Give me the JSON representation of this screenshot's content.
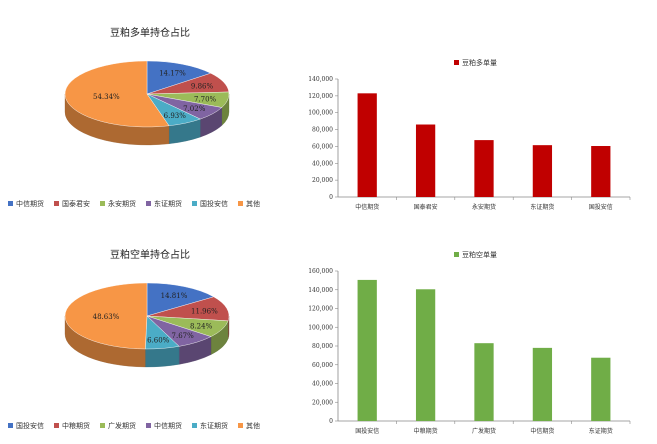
{
  "chart_data": [
    {
      "type": "pie",
      "title": "豆粕多单持仓占比",
      "categories": [
        "中信期货",
        "国泰君安",
        "永安期货",
        "东证期货",
        "国投安信",
        "其他"
      ],
      "values": [
        14.17,
        9.86,
        7.7,
        7.02,
        6.93,
        54.34
      ],
      "labels": [
        "14.17%",
        "9.86%",
        "7.70%",
        "7.02%",
        "6.93%",
        "54.34%"
      ],
      "colors": [
        "#4472c4",
        "#c0504d",
        "#9bbb59",
        "#8064a2",
        "#4bacc6",
        "#f79646"
      ],
      "legend_position": "bottom"
    },
    {
      "type": "bar",
      "legend": "豆粕多单量",
      "categories": [
        "中信期货",
        "国泰君安",
        "永安期货",
        "东证期货",
        "国投安信"
      ],
      "values": [
        123000,
        86000,
        67500,
        61500,
        60500
      ],
      "ylim": [
        0,
        140000
      ],
      "yticks": [
        "0",
        "20,000",
        "40,000",
        "60,000",
        "80,000",
        "100,000",
        "120,000",
        "140,000"
      ],
      "color": "#c00000",
      "grid": false,
      "legend_position": "top"
    },
    {
      "type": "pie",
      "title": "豆粕空单持仓占比",
      "categories": [
        "国投安信",
        "中粮期货",
        "广发期货",
        "中信期货",
        "东证期货",
        "其他"
      ],
      "values": [
        14.81,
        11.96,
        8.24,
        7.67,
        6.6,
        48.63
      ],
      "labels": [
        "14.81%",
        "11.96%",
        "8.24%",
        "7.67%",
        "6.60%",
        "48.63%"
      ],
      "colors": [
        "#4472c4",
        "#c0504d",
        "#9bbb59",
        "#8064a2",
        "#4bacc6",
        "#f79646"
      ],
      "legend_position": "bottom"
    },
    {
      "type": "bar",
      "legend": "豆粕空单量",
      "categories": [
        "国投安信",
        "中粮期货",
        "广发期货",
        "中信期货",
        "东证期货"
      ],
      "values": [
        150500,
        140500,
        83000,
        78000,
        67500
      ],
      "ylim": [
        0,
        160000
      ],
      "yticks": [
        "0",
        "20,000",
        "40,000",
        "60,000",
        "80,000",
        "100,000",
        "120,000",
        "140,000",
        "160,000"
      ],
      "color": "#70ad47",
      "grid": false,
      "legend_position": "top"
    }
  ]
}
